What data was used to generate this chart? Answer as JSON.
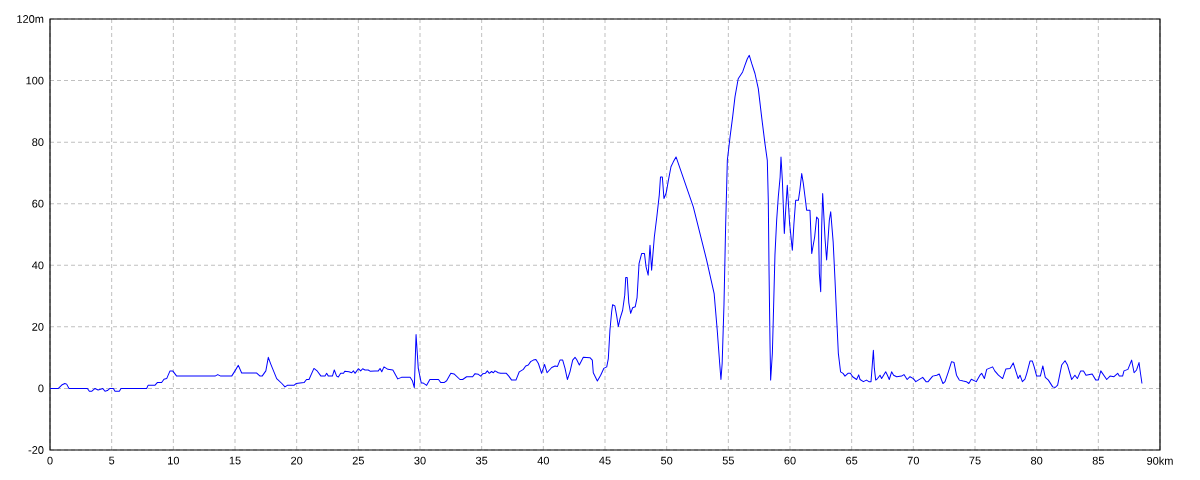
{
  "chart_data": {
    "type": "line",
    "x": [
      0,
      0.68,
      0.95,
      1.2,
      1.35,
      1.54,
      3.03,
      3.19,
      3.4,
      3.65,
      3.9,
      4.1,
      4.27,
      4.46,
      4.65,
      4.86,
      5.14,
      5.27,
      5.62,
      5.76,
      7.84,
      7.95,
      8.5,
      8.7,
      9.05,
      9.24,
      9.46,
      9.73,
      9.95,
      10.27,
      13.38,
      13.6,
      13.84,
      14.73,
      15.0,
      15.27,
      15.54,
      16.76,
      17.03,
      17.2,
      17.5,
      17.7,
      17.9,
      18.38,
      18.8,
      19.05,
      19.24,
      19.78,
      19.95,
      20.6,
      20.8,
      21.0,
      21.4,
      21.68,
      21.97,
      22.3,
      22.43,
      22.57,
      22.9,
      23.05,
      23.24,
      23.38,
      23.57,
      23.8,
      23.9,
      24.24,
      24.46,
      24.6,
      24.73,
      25.0,
      25.19,
      25.35,
      25.54,
      25.8,
      25.95,
      26.35,
      26.62,
      26.76,
      26.9,
      27.08,
      27.4,
      27.8,
      28.2,
      28.5,
      29.2,
      29.38,
      29.54,
      29.68,
      29.86,
      30.1,
      30.24,
      30.54,
      30.8,
      31.5,
      31.68,
      31.95,
      32.16,
      32.5,
      32.76,
      33.24,
      33.46,
      33.78,
      34.27,
      34.46,
      34.73,
      34.92,
      35.1,
      35.3,
      35.46,
      35.62,
      35.8,
      35.95,
      36.08,
      36.35,
      36.54,
      37.0,
      37.2,
      37.43,
      37.78,
      38.05,
      38.38,
      38.57,
      38.78,
      38.97,
      39.19,
      39.4,
      39.6,
      39.86,
      40.1,
      40.3,
      40.68,
      40.95,
      41.14,
      41.35,
      41.57,
      41.76,
      41.95,
      42.16,
      42.38,
      42.57,
      42.7,
      42.92,
      43.24,
      43.78,
      43.97,
      44.05,
      44.38,
      44.65,
      44.9,
      45.14,
      45.27,
      45.4,
      45.54,
      45.62,
      45.8,
      45.95,
      46.08,
      46.22,
      46.43,
      46.6,
      46.68,
      46.8,
      46.93,
      47.08,
      47.24,
      47.45,
      47.6,
      47.76,
      47.97,
      48.2,
      48.33,
      48.5,
      48.65,
      48.78,
      49.0,
      49.2,
      49.4,
      49.5,
      49.65,
      49.78,
      49.95,
      50.14,
      50.35,
      50.54,
      50.76,
      50.95,
      52.16,
      53.24,
      53.85,
      54.1,
      54.3,
      54.4,
      54.5,
      54.65,
      54.78,
      54.92,
      55.14,
      55.35,
      55.54,
      55.8,
      56.16,
      56.35,
      56.54,
      56.7,
      56.9,
      57.16,
      57.43,
      57.7,
      57.97,
      58.16,
      58.24,
      58.3,
      58.38,
      58.43,
      58.57,
      58.65,
      58.78,
      58.92,
      59.05,
      59.2,
      59.27,
      59.38,
      59.54,
      59.65,
      59.78,
      59.97,
      60.19,
      60.32,
      60.46,
      60.68,
      60.8,
      60.95,
      61.08,
      61.22,
      61.35,
      61.62,
      61.76,
      62.0,
      62.16,
      62.3,
      62.38,
      62.49,
      62.57,
      62.65,
      62.84,
      62.97,
      63.19,
      63.3,
      63.5,
      63.65,
      63.78,
      63.92,
      64.1,
      64.3,
      64.46,
      64.7,
      64.9,
      65.08,
      65.4,
      65.57,
      65.68,
      65.95,
      66.2,
      66.4,
      66.57,
      66.65,
      66.76,
      66.84,
      66.95,
      67.1,
      67.3,
      67.43,
      67.76,
      67.9,
      68.05,
      68.24,
      68.4,
      68.65,
      69.05,
      69.24,
      69.5,
      69.73,
      70.0,
      70.2,
      70.4,
      70.76,
      71.03,
      71.2,
      71.57,
      71.9,
      72.1,
      72.4,
      72.57,
      72.84,
      73.1,
      73.3,
      73.5,
      73.73,
      74.05,
      74.3,
      74.5,
      74.7,
      75.1,
      75.4,
      75.54,
      75.76,
      75.95,
      76.43,
      76.6,
      76.9,
      77.24,
      77.5,
      77.84,
      78.1,
      78.5,
      78.65,
      78.84,
      79.05,
      79.2,
      79.46,
      79.65,
      79.8,
      80.0,
      80.3,
      80.5,
      80.7,
      80.95,
      81.3,
      81.5,
      81.7,
      82.03,
      82.3,
      82.5,
      82.84,
      83.1,
      83.3,
      83.57,
      83.8,
      84.0,
      84.5,
      84.8,
      85.0,
      85.2,
      85.68,
      85.95,
      86.27,
      86.57,
      86.7,
      86.97,
      87.08,
      87.4,
      87.7,
      87.9,
      88.1,
      88.3,
      88.4,
      88.54
    ],
    "series": [
      {
        "color": "#0000ff",
        "values": [
          0,
          0,
          1.1,
          1.6,
          1.4,
          0,
          0,
          -0.9,
          -0.9,
          0,
          -0.5,
          -0.3,
          0,
          -0.9,
          -0.7,
          0,
          0,
          -0.9,
          -0.9,
          0,
          0,
          1.0,
          1.0,
          1.9,
          1.9,
          3.0,
          3.2,
          5.7,
          5.7,
          4.0,
          4.0,
          4.5,
          4.0,
          4.0,
          5.7,
          7.5,
          5.0,
          5.0,
          4.0,
          4.0,
          5.7,
          10.1,
          7.9,
          3.2,
          1.6,
          0.5,
          1.0,
          1.0,
          1.6,
          1.9,
          2.9,
          2.9,
          6.5,
          5.6,
          4.0,
          4.0,
          4.9,
          4.0,
          4.0,
          6.0,
          4.0,
          3.7,
          4.9,
          4.9,
          5.6,
          5.4,
          5.1,
          5.7,
          4.9,
          6.4,
          5.7,
          6.4,
          6.0,
          6.0,
          5.6,
          5.7,
          5.7,
          6.5,
          5.4,
          7.0,
          6.2,
          6.0,
          3.1,
          3.6,
          3.6,
          2.5,
          0.3,
          17.5,
          6.5,
          1.8,
          1.8,
          1.0,
          2.9,
          2.9,
          1.9,
          1.9,
          2.5,
          4.9,
          4.7,
          2.9,
          2.9,
          3.8,
          3.8,
          4.8,
          4.6,
          4.0,
          4.8,
          4.9,
          5.7,
          4.9,
          5.5,
          5.1,
          5.7,
          5.1,
          4.9,
          4.9,
          4.0,
          2.7,
          2.7,
          5.4,
          6.2,
          7.3,
          7.6,
          8.7,
          9.2,
          9.4,
          8.1,
          4.9,
          7.8,
          5.1,
          6.8,
          7.3,
          7.1,
          9.2,
          9.2,
          6.5,
          2.9,
          5.4,
          9.2,
          10.1,
          9.4,
          7.6,
          10.1,
          10.0,
          9.2,
          5.1,
          2.4,
          4.3,
          6.5,
          7.0,
          9.7,
          18.9,
          24.9,
          27.2,
          26.8,
          23.5,
          20.1,
          22.7,
          25.4,
          30.3,
          36.0,
          36.0,
          27.8,
          24.4,
          26.2,
          26.5,
          29.5,
          40.5,
          43.8,
          43.8,
          39.5,
          36.8,
          46.5,
          38.4,
          49.2,
          55.7,
          62.8,
          68.7,
          68.7,
          61.7,
          63.3,
          67.6,
          72.0,
          73.6,
          75.2,
          73.0,
          59.0,
          41.7,
          30.8,
          18.9,
          8.1,
          2.9,
          8.1,
          27.6,
          52.5,
          74.1,
          81.7,
          88.2,
          94.7,
          100.6,
          102.8,
          105.0,
          107.1,
          108.2,
          105.5,
          102.3,
          97.4,
          88.2,
          79.5,
          74.1,
          61.1,
          38.4,
          14.6,
          2.7,
          11.4,
          23.3,
          43.3,
          54.7,
          62.2,
          68.7,
          75.2,
          67.6,
          50.3,
          57.9,
          66.0,
          53.6,
          44.9,
          53.6,
          61.1,
          61.1,
          64.4,
          69.8,
          66.6,
          62.2,
          57.9,
          57.9,
          43.8,
          49.2,
          55.7,
          55.0,
          37.3,
          31.4,
          52.5,
          63.3,
          48.7,
          41.7,
          54.7,
          57.4,
          47.6,
          35.2,
          23.3,
          11.4,
          5.4,
          4.9,
          4.0,
          4.9,
          4.9,
          3.8,
          2.9,
          4.4,
          2.9,
          2.2,
          2.7,
          2.2,
          2.2,
          6.5,
          12.4,
          6.5,
          2.7,
          3.2,
          4.3,
          3.2,
          5.4,
          4.3,
          2.9,
          5.4,
          4.3,
          3.8,
          4.0,
          4.5,
          2.9,
          3.8,
          3.2,
          2.2,
          2.7,
          3.6,
          2.2,
          2.2,
          4.0,
          4.3,
          4.7,
          1.6,
          2.2,
          5.4,
          8.7,
          8.4,
          4.3,
          2.7,
          2.4,
          2.2,
          1.6,
          3.0,
          2.2,
          4.3,
          4.9,
          3.2,
          6.2,
          7.0,
          5.7,
          4.3,
          3.2,
          6.3,
          6.5,
          8.3,
          3.2,
          4.3,
          2.2,
          3.0,
          4.9,
          8.9,
          8.9,
          7.0,
          4.0,
          4.0,
          7.3,
          3.6,
          2.7,
          0.5,
          0.3,
          1.1,
          7.6,
          9.0,
          7.6,
          2.9,
          4.3,
          3.2,
          5.7,
          5.7,
          4.3,
          4.7,
          2.7,
          2.7,
          5.7,
          2.9,
          4.0,
          3.8,
          4.9,
          4.0,
          4.0,
          5.7,
          6.2,
          9.2,
          5.1,
          6.0,
          8.4,
          5.4,
          1.6
        ]
      }
    ],
    "xlim": [
      0,
      90
    ],
    "ylim": [
      -20,
      120
    ],
    "xticks": [
      0,
      5,
      10,
      15,
      20,
      25,
      30,
      35,
      40,
      45,
      50,
      55,
      60,
      65,
      70,
      75,
      80,
      85,
      {
        "value": 90,
        "label": "90km"
      }
    ],
    "yticks": [
      -20,
      0,
      20,
      40,
      60,
      80,
      100,
      {
        "value": 120,
        "label": "120m"
      }
    ],
    "grid": true
  }
}
